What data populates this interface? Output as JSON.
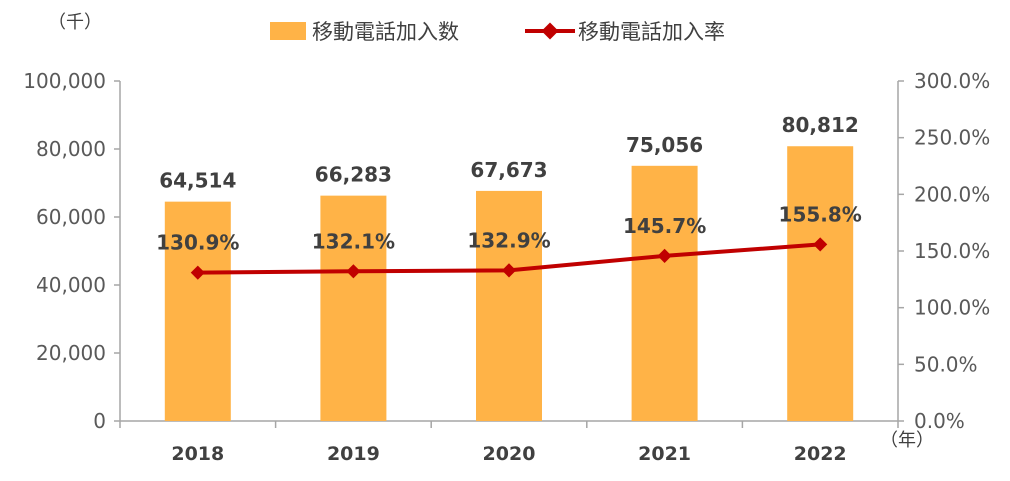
{
  "chart_data": {
    "type": "bar",
    "categories": [
      "2018",
      "2019",
      "2020",
      "2021",
      "2022"
    ],
    "series": [
      {
        "name": "移動電話加入数",
        "type": "bar",
        "axis": "left",
        "values": [
          64514,
          66283,
          67673,
          75056,
          80812
        ],
        "labels": [
          "64,514",
          "66,283",
          "67,673",
          "75,056",
          "80,812"
        ],
        "color": "#FFB347"
      },
      {
        "name": "移動電話加入率",
        "type": "line",
        "axis": "right",
        "values": [
          130.9,
          132.1,
          132.9,
          145.7,
          155.8
        ],
        "labels": [
          "130.9%",
          "132.1%",
          "132.9%",
          "145.7%",
          "155.8%"
        ],
        "color": "#C00000"
      }
    ],
    "y_left": {
      "unit_label": "（千）",
      "ylim": [
        0,
        100000
      ],
      "ticks": [
        0,
        20000,
        40000,
        60000,
        80000,
        100000
      ],
      "tick_labels": [
        "0",
        "20,000",
        "40,000",
        "60,000",
        "80,000",
        "100,000"
      ]
    },
    "y_right": {
      "ylim": [
        0,
        300
      ],
      "ticks": [
        0,
        50,
        100,
        150,
        200,
        250,
        300
      ],
      "tick_labels": [
        "0.0%",
        "50.0%",
        "100.0%",
        "150.0%",
        "200.0%",
        "250.0%",
        "300.0%"
      ]
    },
    "x_unit_label": "（年）",
    "legend_position": "top",
    "grid": false
  }
}
